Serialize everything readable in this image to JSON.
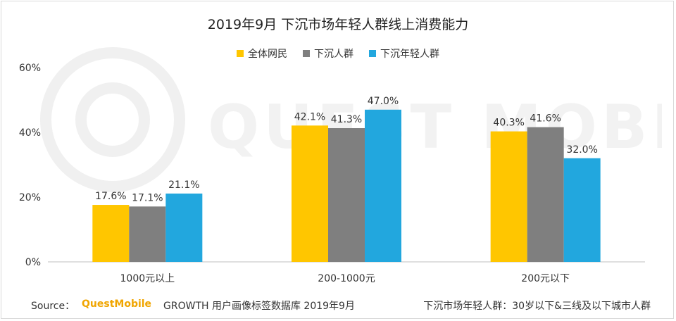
{
  "title": "2019年9月 下沉市场年轻人群线上消费能力",
  "watermark_text": "QUEST MOBILE",
  "colors": {
    "yellow": "#FFC600",
    "gray": "#7F7F7F",
    "blue": "#22A7DE",
    "axis": "#bfbfbf",
    "text": "#333333"
  },
  "legend": [
    {
      "label": "全体网民",
      "color": "#FFC600"
    },
    {
      "label": "下沉人群",
      "color": "#7F7F7F"
    },
    {
      "label": "下沉年轻人群",
      "color": "#22A7DE"
    }
  ],
  "chart_data": {
    "type": "bar",
    "title": "2019年9月 下沉市场年轻人群线上消费能力",
    "categories": [
      "1000元以上",
      "200-1000元",
      "200元以下"
    ],
    "series": [
      {
        "name": "全体网民",
        "values": [
          17.6,
          42.1,
          40.3
        ],
        "color": "#FFC600"
      },
      {
        "name": "下沉人群",
        "values": [
          17.1,
          41.3,
          41.6
        ],
        "color": "#7F7F7F"
      },
      {
        "name": "下沉年轻人群",
        "values": [
          21.1,
          47.0,
          32.0
        ],
        "color": "#22A7DE"
      }
    ],
    "y_ticks": [
      "0%",
      "20%",
      "40%",
      "60%"
    ],
    "ylim": [
      0,
      60
    ],
    "value_suffix": "%",
    "grid": false,
    "legend_position": "top"
  },
  "footer": {
    "source_prefix": "Source：",
    "brand": "QuestMobile",
    "source_rest": "GROWTH 用户画像标签数据库  2019年9月",
    "note": "下沉市场年轻人群：30岁以下&三线及以下城市人群"
  }
}
